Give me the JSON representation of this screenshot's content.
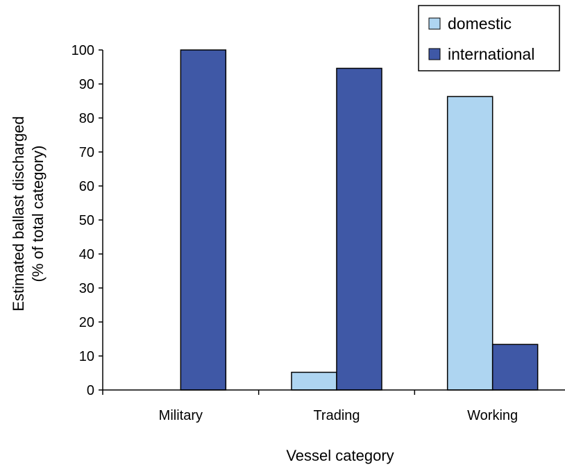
{
  "chart_data": {
    "type": "bar",
    "categories": [
      "Military",
      "Trading",
      "Working"
    ],
    "series": [
      {
        "name": "domestic",
        "values": [
          0,
          5.2,
          86.3
        ],
        "color": "#aed5f1"
      },
      {
        "name": "international",
        "values": [
          100,
          94.6,
          13.4
        ],
        "color": "#3f58a6"
      }
    ],
    "xlabel": "Vessel category",
    "ylabel": [
      "Estimated ballast discharged",
      "(% of total category)"
    ],
    "ylim": [
      0,
      100
    ],
    "yticks": [
      0,
      10,
      20,
      30,
      40,
      50,
      60,
      70,
      80,
      90,
      100
    ],
    "grid": false,
    "legend_position": "top-right"
  }
}
